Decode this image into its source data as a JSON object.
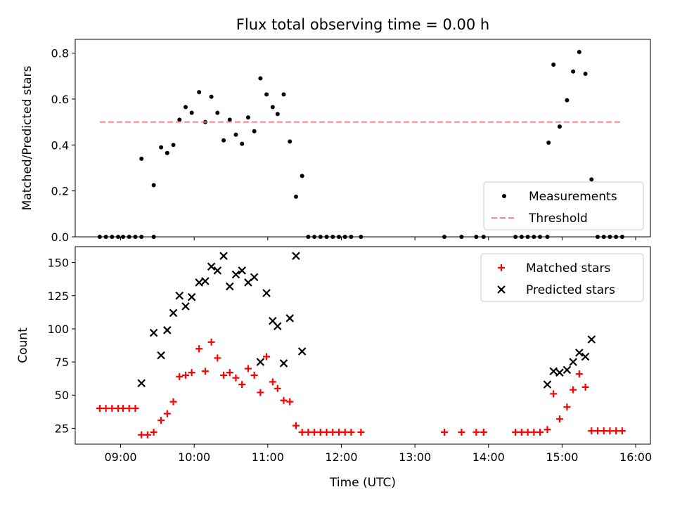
{
  "chart_data": [
    {
      "type": "scatter",
      "title": "Flux total observing time = 0.00 h",
      "xlabel": "",
      "ylabel": "Matched/Predicted stars",
      "x_unit": "hours UTC",
      "xlim": [
        "08:23",
        "16:12"
      ],
      "ylim": [
        0,
        0.86
      ],
      "yticks": [
        "0.0",
        "0.2",
        "0.4",
        "0.6",
        "0.8"
      ],
      "xticks": [],
      "grid": false,
      "legend_position": "lower right",
      "series": [
        {
          "name": "Measurements",
          "style": "dot",
          "color": "#000000",
          "points": [
            {
              "x": "08:43",
              "y": 0.0
            },
            {
              "x": "08:48",
              "y": 0.0
            },
            {
              "x": "08:53",
              "y": 0.0
            },
            {
              "x": "08:58",
              "y": 0.0
            },
            {
              "x": "09:02",
              "y": 0.0
            },
            {
              "x": "09:07",
              "y": 0.0
            },
            {
              "x": "09:12",
              "y": 0.0
            },
            {
              "x": "09:17",
              "y": 0.0
            },
            {
              "x": "09:27",
              "y": 0.0
            },
            {
              "x": "09:17",
              "y": 0.34
            },
            {
              "x": "09:27",
              "y": 0.225
            },
            {
              "x": "09:33",
              "y": 0.39
            },
            {
              "x": "09:38",
              "y": 0.365
            },
            {
              "x": "09:43",
              "y": 0.4
            },
            {
              "x": "09:48",
              "y": 0.51
            },
            {
              "x": "09:53",
              "y": 0.565
            },
            {
              "x": "09:58",
              "y": 0.54
            },
            {
              "x": "10:04",
              "y": 0.63
            },
            {
              "x": "10:09",
              "y": 0.5
            },
            {
              "x": "10:14",
              "y": 0.61
            },
            {
              "x": "10:19",
              "y": 0.54
            },
            {
              "x": "10:24",
              "y": 0.42
            },
            {
              "x": "10:29",
              "y": 0.51
            },
            {
              "x": "10:34",
              "y": 0.445
            },
            {
              "x": "10:39",
              "y": 0.405
            },
            {
              "x": "10:44",
              "y": 0.52
            },
            {
              "x": "10:49",
              "y": 0.46
            },
            {
              "x": "10:54",
              "y": 0.69
            },
            {
              "x": "10:59",
              "y": 0.62
            },
            {
              "x": "11:04",
              "y": 0.565
            },
            {
              "x": "11:08",
              "y": 0.535
            },
            {
              "x": "11:13",
              "y": 0.62
            },
            {
              "x": "11:18",
              "y": 0.415
            },
            {
              "x": "11:23",
              "y": 0.175
            },
            {
              "x": "11:28",
              "y": 0.265
            },
            {
              "x": "11:33",
              "y": 0.0
            },
            {
              "x": "11:38",
              "y": 0.0
            },
            {
              "x": "11:43",
              "y": 0.0
            },
            {
              "x": "11:48",
              "y": 0.0
            },
            {
              "x": "11:53",
              "y": 0.0
            },
            {
              "x": "11:58",
              "y": 0.0
            },
            {
              "x": "12:03",
              "y": 0.0
            },
            {
              "x": "12:08",
              "y": 0.0
            },
            {
              "x": "12:16",
              "y": 0.0
            },
            {
              "x": "13:24",
              "y": 0.0
            },
            {
              "x": "13:38",
              "y": 0.0
            },
            {
              "x": "13:50",
              "y": 0.0
            },
            {
              "x": "13:56",
              "y": 0.0
            },
            {
              "x": "14:22",
              "y": 0.0
            },
            {
              "x": "14:27",
              "y": 0.0
            },
            {
              "x": "14:32",
              "y": 0.0
            },
            {
              "x": "14:37",
              "y": 0.0
            },
            {
              "x": "14:42",
              "y": 0.0
            },
            {
              "x": "14:48",
              "y": 0.0
            },
            {
              "x": "14:49",
              "y": 0.41
            },
            {
              "x": "14:53",
              "y": 0.75
            },
            {
              "x": "14:58",
              "y": 0.48
            },
            {
              "x": "15:04",
              "y": 0.595
            },
            {
              "x": "15:09",
              "y": 0.72
            },
            {
              "x": "15:14",
              "y": 0.805
            },
            {
              "x": "15:19",
              "y": 0.71
            },
            {
              "x": "15:24",
              "y": 0.25
            },
            {
              "x": "15:29",
              "y": 0.0
            },
            {
              "x": "15:34",
              "y": 0.0
            },
            {
              "x": "15:39",
              "y": 0.0
            },
            {
              "x": "15:44",
              "y": 0.0
            },
            {
              "x": "15:49",
              "y": 0.0
            }
          ]
        },
        {
          "name": "Threshold",
          "style": "dashed-line",
          "color": "#ff8080",
          "points": [
            {
              "x": "08:43",
              "y": 0.5
            },
            {
              "x": "15:49",
              "y": 0.5
            }
          ]
        }
      ]
    },
    {
      "type": "scatter",
      "title": "",
      "xlabel": "Time (UTC)",
      "ylabel": "Count",
      "x_unit": "hours UTC",
      "xlim": [
        "08:23",
        "16:12"
      ],
      "ylim": [
        13,
        162
      ],
      "xticks": [
        "09:00",
        "10:00",
        "11:00",
        "12:00",
        "13:00",
        "14:00",
        "15:00",
        "16:00"
      ],
      "yticks": [
        "25",
        "50",
        "75",
        "100",
        "125",
        "150"
      ],
      "grid": false,
      "legend_position": "upper right",
      "series": [
        {
          "name": "Matched stars",
          "marker": "plus",
          "color": "#ff0000",
          "points": [
            {
              "x": "08:43",
              "y": 40
            },
            {
              "x": "08:48",
              "y": 40
            },
            {
              "x": "08:53",
              "y": 40
            },
            {
              "x": "08:58",
              "y": 40
            },
            {
              "x": "09:02",
              "y": 40
            },
            {
              "x": "09:07",
              "y": 40
            },
            {
              "x": "09:12",
              "y": 40
            },
            {
              "x": "09:17",
              "y": 20
            },
            {
              "x": "09:22",
              "y": 20
            },
            {
              "x": "09:27",
              "y": 22
            },
            {
              "x": "09:33",
              "y": 31
            },
            {
              "x": "09:38",
              "y": 36
            },
            {
              "x": "09:43",
              "y": 45
            },
            {
              "x": "09:48",
              "y": 64
            },
            {
              "x": "09:53",
              "y": 65
            },
            {
              "x": "09:58",
              "y": 67
            },
            {
              "x": "10:04",
              "y": 85
            },
            {
              "x": "10:09",
              "y": 68
            },
            {
              "x": "10:14",
              "y": 90
            },
            {
              "x": "10:19",
              "y": 78
            },
            {
              "x": "10:24",
              "y": 65
            },
            {
              "x": "10:29",
              "y": 67
            },
            {
              "x": "10:34",
              "y": 63
            },
            {
              "x": "10:39",
              "y": 58
            },
            {
              "x": "10:44",
              "y": 70
            },
            {
              "x": "10:49",
              "y": 65
            },
            {
              "x": "10:54",
              "y": 52
            },
            {
              "x": "10:59",
              "y": 79
            },
            {
              "x": "11:04",
              "y": 60
            },
            {
              "x": "11:08",
              "y": 55
            },
            {
              "x": "11:13",
              "y": 46
            },
            {
              "x": "11:18",
              "y": 45
            },
            {
              "x": "11:23",
              "y": 27
            },
            {
              "x": "11:28",
              "y": 22
            },
            {
              "x": "11:33",
              "y": 22
            },
            {
              "x": "11:38",
              "y": 22
            },
            {
              "x": "11:43",
              "y": 22
            },
            {
              "x": "11:48",
              "y": 22
            },
            {
              "x": "11:53",
              "y": 22
            },
            {
              "x": "11:58",
              "y": 22
            },
            {
              "x": "12:03",
              "y": 22
            },
            {
              "x": "12:08",
              "y": 22
            },
            {
              "x": "12:16",
              "y": 22
            },
            {
              "x": "13:24",
              "y": 22
            },
            {
              "x": "13:38",
              "y": 22
            },
            {
              "x": "13:50",
              "y": 22
            },
            {
              "x": "13:56",
              "y": 22
            },
            {
              "x": "14:22",
              "y": 22
            },
            {
              "x": "14:27",
              "y": 22
            },
            {
              "x": "14:32",
              "y": 22
            },
            {
              "x": "14:37",
              "y": 22
            },
            {
              "x": "14:42",
              "y": 22
            },
            {
              "x": "14:48",
              "y": 24
            },
            {
              "x": "14:53",
              "y": 51
            },
            {
              "x": "14:58",
              "y": 32
            },
            {
              "x": "15:04",
              "y": 41
            },
            {
              "x": "15:09",
              "y": 54
            },
            {
              "x": "15:14",
              "y": 66
            },
            {
              "x": "15:19",
              "y": 56
            },
            {
              "x": "15:24",
              "y": 23
            },
            {
              "x": "15:29",
              "y": 23
            },
            {
              "x": "15:34",
              "y": 23
            },
            {
              "x": "15:39",
              "y": 23
            },
            {
              "x": "15:44",
              "y": 23
            },
            {
              "x": "15:49",
              "y": 23
            }
          ]
        },
        {
          "name": "Predicted stars",
          "marker": "x",
          "color": "#000000",
          "points": [
            {
              "x": "09:17",
              "y": 59
            },
            {
              "x": "09:27",
              "y": 97
            },
            {
              "x": "09:33",
              "y": 80
            },
            {
              "x": "09:38",
              "y": 99
            },
            {
              "x": "09:43",
              "y": 112
            },
            {
              "x": "09:48",
              "y": 125
            },
            {
              "x": "09:53",
              "y": 117
            },
            {
              "x": "09:58",
              "y": 124
            },
            {
              "x": "10:04",
              "y": 135
            },
            {
              "x": "10:09",
              "y": 136
            },
            {
              "x": "10:14",
              "y": 147
            },
            {
              "x": "10:19",
              "y": 144
            },
            {
              "x": "10:24",
              "y": 155
            },
            {
              "x": "10:29",
              "y": 132
            },
            {
              "x": "10:34",
              "y": 141
            },
            {
              "x": "10:39",
              "y": 144
            },
            {
              "x": "10:44",
              "y": 135
            },
            {
              "x": "10:49",
              "y": 139
            },
            {
              "x": "10:54",
              "y": 75
            },
            {
              "x": "10:59",
              "y": 127
            },
            {
              "x": "11:04",
              "y": 106
            },
            {
              "x": "11:08",
              "y": 102
            },
            {
              "x": "11:13",
              "y": 74
            },
            {
              "x": "11:18",
              "y": 108
            },
            {
              "x": "11:23",
              "y": 155
            },
            {
              "x": "11:28",
              "y": 83
            },
            {
              "x": "14:48",
              "y": 58
            },
            {
              "x": "14:53",
              "y": 68
            },
            {
              "x": "14:58",
              "y": 67
            },
            {
              "x": "15:04",
              "y": 69
            },
            {
              "x": "15:09",
              "y": 75
            },
            {
              "x": "15:14",
              "y": 82
            },
            {
              "x": "15:19",
              "y": 79
            },
            {
              "x": "15:24",
              "y": 92
            }
          ]
        }
      ]
    }
  ]
}
